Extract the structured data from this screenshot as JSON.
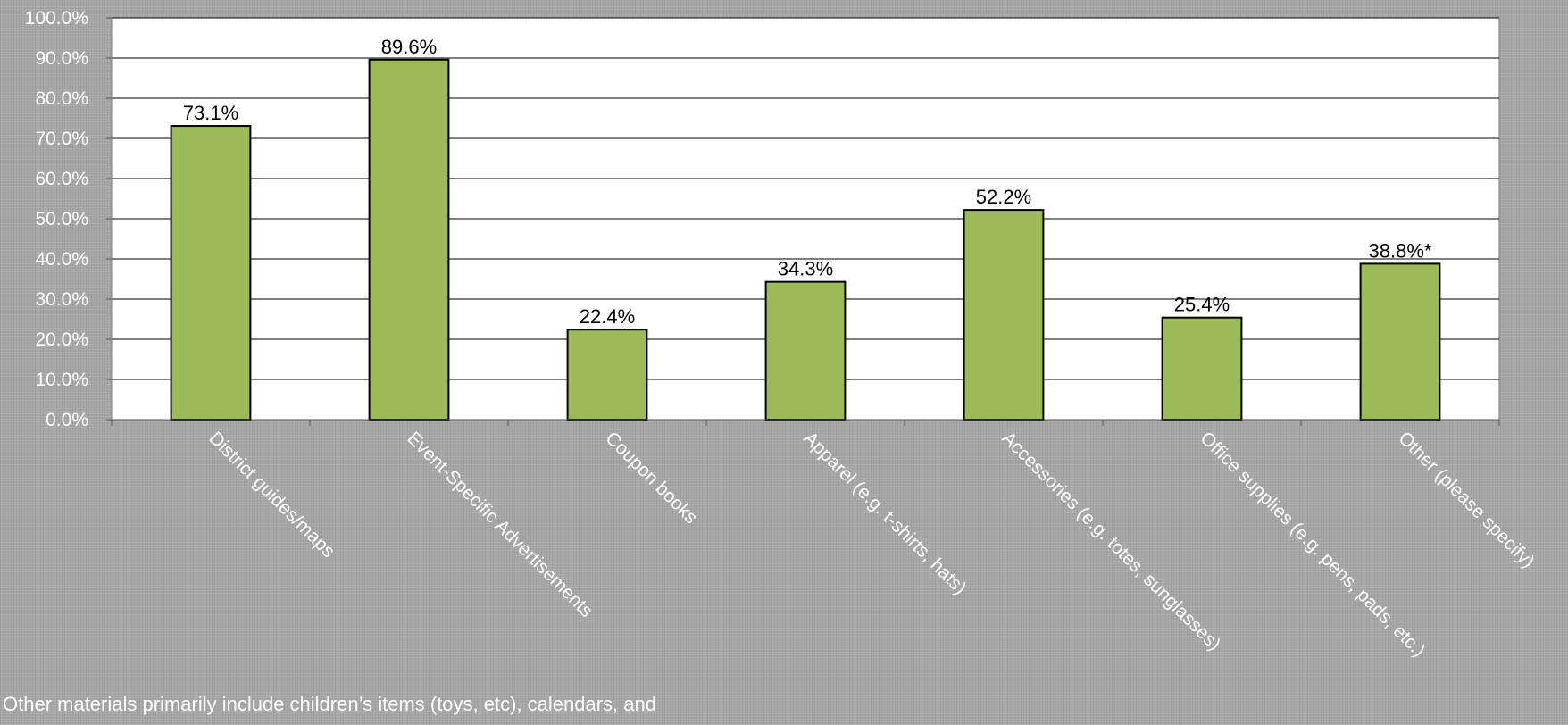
{
  "chart_data": {
    "type": "bar",
    "categories": [
      "District guides/maps",
      "Event-Specific Advertisements",
      "Coupon books",
      "Apparel (e.g. t-shirts, hats)",
      "Accessories (e.g. totes, sunglasses)",
      "Office supplies (e.g. pens, pads, etc.)",
      "Other (please specify)"
    ],
    "values": [
      73.1,
      89.6,
      22.4,
      34.3,
      52.2,
      25.4,
      38.8
    ],
    "data_labels": [
      "73.1%",
      "89.6%",
      "22.4%",
      "34.3%",
      "52.2%",
      "25.4%",
      "38.8%*"
    ],
    "ylim": [
      0,
      100
    ],
    "yticks": [
      0,
      10,
      20,
      30,
      40,
      50,
      60,
      70,
      80,
      90,
      100
    ],
    "ytick_labels": [
      "0.0%",
      "10.0%",
      "20.0%",
      "30.0%",
      "40.0%",
      "50.0%",
      "60.0%",
      "70.0%",
      "80.0%",
      "90.0%",
      "100.0%"
    ],
    "grid": true,
    "legend": "none",
    "title": "",
    "xlabel": "",
    "ylabel": ""
  },
  "colors": {
    "bar_fill": "#9bbb59",
    "bar_stroke": "#000000",
    "plot_background": "#ffffff",
    "gridline": "#000000",
    "page_background": "#a6a6a6",
    "label_text": "#ffffff"
  },
  "footnote": "Other materials primarily include children’s items (toys, etc), calendars, and"
}
